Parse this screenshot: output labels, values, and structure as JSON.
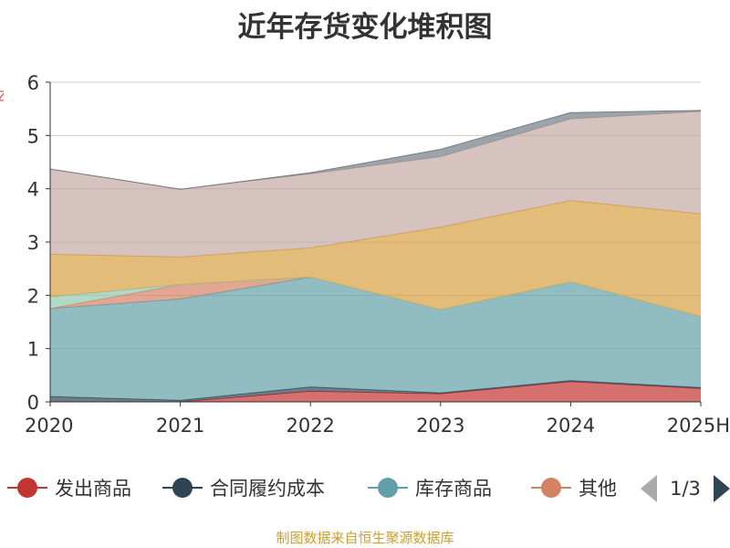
{
  "chart_data": {
    "type": "area",
    "stacked": true,
    "title": "近年存货变化堆积图",
    "categories": [
      "2020",
      "2021",
      "2022",
      "2023",
      "2024",
      "2025H"
    ],
    "ylim": [
      0,
      6
    ],
    "yticks": [
      "0",
      "1",
      "2",
      "3",
      "4",
      "5",
      "6"
    ],
    "grid": true,
    "legend_position": "bottom",
    "legend_page": "1/3",
    "series": [
      {
        "name": "发出商品",
        "color": "#c23531",
        "values": [
          0.0,
          0.0,
          0.2,
          0.15,
          0.38,
          0.25
        ]
      },
      {
        "name": "合同履约成本",
        "color": "#2f4554",
        "values": [
          0.1,
          0.03,
          0.08,
          0.02,
          0.02,
          0.02
        ]
      },
      {
        "name": "库存商品",
        "color": "#61a0a8",
        "values": [
          1.65,
          1.9,
          2.06,
          1.56,
          1.85,
          1.33
        ]
      },
      {
        "name": "其他",
        "color": "#d48265",
        "values": [
          0.0,
          0.27,
          0.0,
          0.0,
          0.0,
          0.0
        ]
      },
      {
        "color": "#91c7ae",
        "values": [
          0.22,
          0.0,
          0.0,
          0.0,
          0.0,
          0.0
        ]
      },
      {
        "color": "#d69f3e",
        "values": [
          0.8,
          0.52,
          0.55,
          1.55,
          1.53,
          1.93
        ]
      },
      {
        "color": "#c4aaa4",
        "values": [
          1.6,
          1.27,
          1.39,
          1.32,
          1.53,
          1.92
        ]
      },
      {
        "color": "#737d84",
        "values": [
          0.0,
          0.0,
          0.02,
          0.14,
          0.12,
          0.02
        ]
      }
    ]
  },
  "source_note": "制图数据来自恒生聚源数据库",
  "ylabel_stub": "亿"
}
